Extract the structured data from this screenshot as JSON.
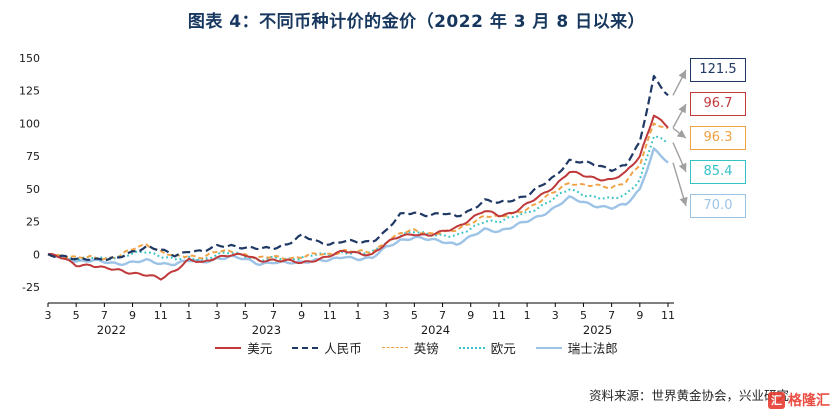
{
  "title": "图表 4：不同币种计价的金价（2022 年 3 月 8 日以来）",
  "source": "资料来源：世界黄金协会，兴业研究",
  "watermark": "格隆汇",
  "watermark_badge": "汇",
  "colors": {
    "title": "#17375e",
    "usd": "#c0393b",
    "cny": "#1f3864",
    "gbp": "#efa143",
    "eur": "#35c2c5",
    "chf": "#9dc3e6",
    "leader": "#a0a0a0"
  },
  "chart_data": {
    "type": "line",
    "title": "不同币种计价的金价（2022年3月8日以来）",
    "unit": "%",
    "x_monthly_start": "2022-03",
    "x_monthly_end": "2025-11",
    "ylim": [
      -40,
      155
    ],
    "yticks": [
      "150",
      "125",
      "100",
      "75",
      "50",
      "25",
      "0",
      "-25"
    ],
    "ytick_values": [
      150,
      125,
      100,
      75,
      50,
      25,
      0,
      -25
    ],
    "x_tick_indices": [
      0,
      2,
      4,
      6,
      8,
      10,
      12,
      14,
      16,
      18,
      20,
      22,
      24,
      26,
      28,
      30,
      32,
      34,
      36,
      38,
      40,
      42,
      44
    ],
    "x_tick_labels": [
      "3",
      "5",
      "7",
      "9",
      "11",
      "1",
      "3",
      "5",
      "7",
      "9",
      "11",
      "1",
      "3",
      "5",
      "7",
      "9",
      "11",
      "1",
      "3",
      "5",
      "7",
      "9",
      "11"
    ],
    "years": [
      {
        "label": "2022",
        "center_index": 4.5
      },
      {
        "label": "2023",
        "center_index": 15.5
      },
      {
        "label": "2024",
        "center_index": 27.5
      },
      {
        "label": "2025",
        "center_index": 39
      }
    ],
    "legend_position": "bottom",
    "grid": false,
    "series": [
      {
        "key": "usd",
        "name": "美元",
        "color": "#c0393b",
        "dash": "solid",
        "width": 2,
        "end_value": 96.7,
        "values": [
          0,
          -3,
          -8,
          -8,
          -11,
          -12,
          -14,
          -16,
          -19,
          -12,
          -4,
          -7,
          -2,
          0,
          -1,
          -5,
          -4,
          -5,
          -7,
          -4,
          -1,
          2,
          1,
          0,
          8,
          14,
          16,
          14,
          17,
          21,
          27,
          33,
          30,
          32,
          38,
          45,
          53,
          63,
          60,
          58,
          57,
          62,
          75,
          107,
          96.7
        ]
      },
      {
        "key": "cny",
        "name": "人民币",
        "color": "#1f3864",
        "dash": "dashed",
        "width": 2.2,
        "end_value": 121.5,
        "values": [
          0,
          -2,
          -4,
          -3,
          -4,
          -3,
          2,
          6,
          3,
          -1,
          3,
          2,
          6,
          7,
          5,
          4,
          5,
          8,
          14,
          10,
          8,
          10,
          9,
          10,
          18,
          30,
          32,
          30,
          31,
          29,
          34,
          41,
          39,
          42,
          45,
          52,
          60,
          72,
          70,
          68,
          65,
          68,
          85,
          136,
          121.5
        ]
      },
      {
        "key": "gbp",
        "name": "英镑",
        "color": "#efa143",
        "dash": "shortdash",
        "width": 1.9,
        "end_value": 96.3,
        "values": [
          0,
          -1,
          -3,
          -2,
          -3,
          -2,
          4,
          8,
          2,
          -2,
          -1,
          -2,
          2,
          2,
          0,
          -3,
          -2,
          -3,
          -2,
          0,
          0,
          3,
          2,
          1,
          10,
          16,
          18,
          16,
          17,
          18,
          24,
          30,
          28,
          31,
          35,
          41,
          48,
          55,
          53,
          52,
          51,
          56,
          68,
          100,
          96.3
        ]
      },
      {
        "key": "eur",
        "name": "欧元",
        "color": "#35c2c5",
        "dash": "dotted",
        "width": 2,
        "end_value": 85.4,
        "values": [
          0,
          -2,
          -4,
          -3,
          -3,
          -2,
          0,
          2,
          -1,
          -4,
          -3,
          -4,
          0,
          1,
          -1,
          -4,
          -3,
          -4,
          -2,
          0,
          -1,
          2,
          1,
          1,
          9,
          15,
          17,
          15,
          15,
          14,
          19,
          26,
          25,
          28,
          32,
          37,
          43,
          50,
          46,
          43,
          42,
          46,
          57,
          90,
          85.4
        ]
      },
      {
        "key": "chf",
        "name": "瑞士法郎",
        "color": "#9dc3e6",
        "dash": "solid",
        "width": 2.4,
        "end_value": 70.0,
        "values": [
          0,
          -2,
          -5,
          -5,
          -6,
          -7,
          -6,
          -5,
          -7,
          -7,
          -5,
          -6,
          -3,
          -2,
          -4,
          -7,
          -6,
          -7,
          -6,
          -4,
          -5,
          -2,
          -3,
          -3,
          5,
          11,
          13,
          11,
          10,
          8,
          13,
          19,
          18,
          21,
          25,
          30,
          36,
          43,
          40,
          37,
          35,
          38,
          50,
          80,
          70
        ]
      }
    ],
    "end_labels": [
      {
        "key": "cny",
        "series": "人民币",
        "value": "121.5",
        "color": "#1f3864"
      },
      {
        "key": "usd",
        "series": "美元",
        "value": "96.7",
        "color": "#c0393b"
      },
      {
        "key": "gbp",
        "series": "英镑",
        "value": "96.3",
        "color": "#efa143"
      },
      {
        "key": "eur",
        "series": "欧元",
        "value": "85.4",
        "color": "#35c2c5"
      },
      {
        "key": "chf",
        "series": "瑞士法郎",
        "value": "70.0",
        "color": "#9dc3e6"
      }
    ]
  }
}
